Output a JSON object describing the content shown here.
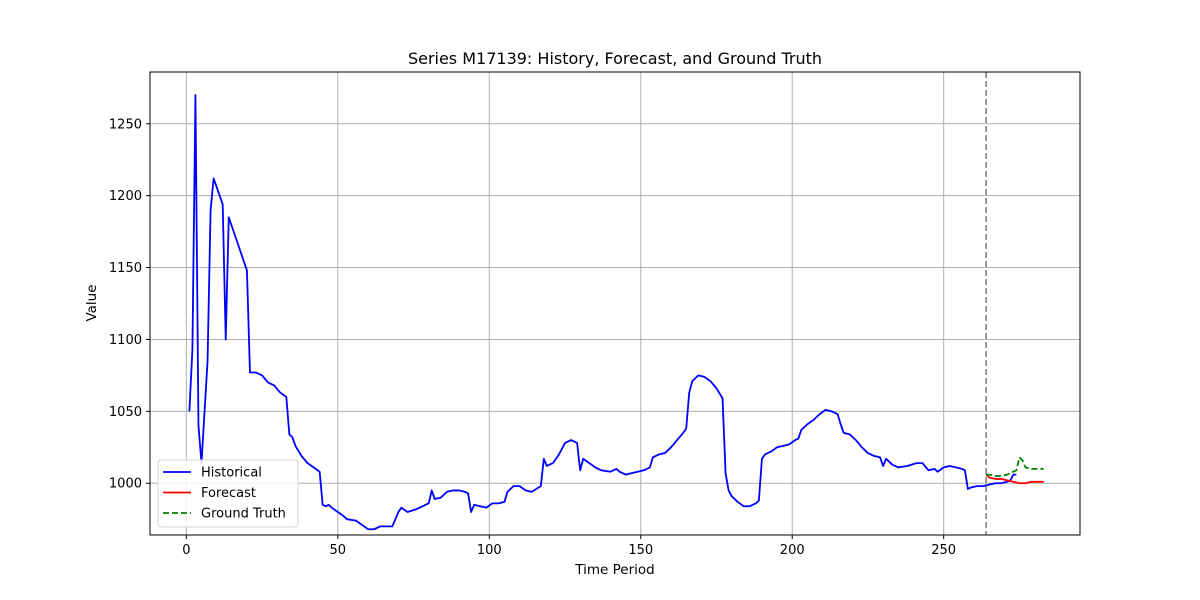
{
  "chart_data": {
    "type": "line",
    "title": "Series M17139: History, Forecast, and Ground Truth",
    "xlabel": "Time Period",
    "ylabel": "Value",
    "xlim": [
      -12,
      295
    ],
    "ylim": [
      964,
      1286
    ],
    "x_ticks": [
      0,
      50,
      100,
      150,
      200,
      250
    ],
    "y_ticks": [
      1000,
      1050,
      1100,
      1150,
      1200,
      1250
    ],
    "grid": true,
    "legend_position": "lower-left",
    "forecast_start": 264,
    "series": [
      {
        "name": "Historical",
        "color": "#0000ff",
        "style": "solid",
        "points": [
          [
            1,
            1050
          ],
          [
            2,
            1093
          ],
          [
            3,
            1270
          ],
          [
            4,
            1040
          ],
          [
            5,
            1014
          ],
          [
            7,
            1085
          ],
          [
            8,
            1190
          ],
          [
            9,
            1212
          ],
          [
            12,
            1194
          ],
          [
            13,
            1100
          ],
          [
            14,
            1185
          ],
          [
            20,
            1148
          ],
          [
            21,
            1077
          ],
          [
            23,
            1077
          ],
          [
            25,
            1075
          ],
          [
            27,
            1070
          ],
          [
            29,
            1068
          ],
          [
            31,
            1063
          ],
          [
            33,
            1060
          ],
          [
            34,
            1034
          ],
          [
            35,
            1032
          ],
          [
            36,
            1026
          ],
          [
            38,
            1019
          ],
          [
            40,
            1014
          ],
          [
            42,
            1011
          ],
          [
            44,
            1008
          ],
          [
            45,
            985
          ],
          [
            46,
            984
          ],
          [
            47,
            985
          ],
          [
            48,
            983
          ],
          [
            50,
            980
          ],
          [
            52,
            977
          ],
          [
            53,
            975
          ],
          [
            56,
            974
          ],
          [
            58,
            971
          ],
          [
            60,
            968
          ],
          [
            62,
            968
          ],
          [
            64,
            970
          ],
          [
            66,
            970
          ],
          [
            68,
            970
          ],
          [
            70,
            980
          ],
          [
            71,
            983
          ],
          [
            73,
            980
          ],
          [
            76,
            982
          ],
          [
            78,
            984
          ],
          [
            80,
            986
          ],
          [
            81,
            995
          ],
          [
            82,
            989
          ],
          [
            84,
            990
          ],
          [
            86,
            994
          ],
          [
            88,
            995
          ],
          [
            90,
            995
          ],
          [
            92,
            994
          ],
          [
            93,
            993
          ],
          [
            94,
            980
          ],
          [
            95,
            985
          ],
          [
            97,
            984
          ],
          [
            99,
            983
          ],
          [
            101,
            986
          ],
          [
            103,
            986
          ],
          [
            105,
            987
          ],
          [
            106,
            994
          ],
          [
            108,
            998
          ],
          [
            110,
            998
          ],
          [
            112,
            995
          ],
          [
            114,
            994
          ],
          [
            117,
            998
          ],
          [
            118,
            1017
          ],
          [
            119,
            1012
          ],
          [
            121,
            1014
          ],
          [
            123,
            1020
          ],
          [
            125,
            1028
          ],
          [
            127,
            1030
          ],
          [
            129,
            1028
          ],
          [
            130,
            1009
          ],
          [
            131,
            1017
          ],
          [
            133,
            1014
          ],
          [
            135,
            1011
          ],
          [
            137,
            1009
          ],
          [
            140,
            1008
          ],
          [
            142,
            1010
          ],
          [
            143,
            1008
          ],
          [
            145,
            1006
          ],
          [
            147,
            1007
          ],
          [
            149,
            1008
          ],
          [
            151,
            1009
          ],
          [
            153,
            1011
          ],
          [
            154,
            1018
          ],
          [
            156,
            1020
          ],
          [
            158,
            1021
          ],
          [
            160,
            1025
          ],
          [
            162,
            1030
          ],
          [
            164,
            1035
          ],
          [
            165,
            1038
          ],
          [
            166,
            1063
          ],
          [
            167,
            1071
          ],
          [
            169,
            1075
          ],
          [
            171,
            1074
          ],
          [
            173,
            1071
          ],
          [
            175,
            1066
          ],
          [
            177,
            1059
          ],
          [
            178,
            1007
          ],
          [
            179,
            995
          ],
          [
            180,
            991
          ],
          [
            182,
            987
          ],
          [
            184,
            984
          ],
          [
            186,
            984
          ],
          [
            188,
            986
          ],
          [
            189,
            988
          ],
          [
            190,
            1017
          ],
          [
            191,
            1020
          ],
          [
            193,
            1022
          ],
          [
            195,
            1025
          ],
          [
            197,
            1026
          ],
          [
            199,
            1027
          ],
          [
            201,
            1030
          ],
          [
            202,
            1031
          ],
          [
            203,
            1037
          ],
          [
            205,
            1041
          ],
          [
            207,
            1044
          ],
          [
            209,
            1048
          ],
          [
            211,
            1051
          ],
          [
            213,
            1050
          ],
          [
            215,
            1048
          ],
          [
            216,
            1041
          ],
          [
            217,
            1035
          ],
          [
            219,
            1034
          ],
          [
            221,
            1030
          ],
          [
            223,
            1025
          ],
          [
            225,
            1021
          ],
          [
            227,
            1019
          ],
          [
            229,
            1018
          ],
          [
            230,
            1012
          ],
          [
            231,
            1017
          ],
          [
            233,
            1013
          ],
          [
            235,
            1011
          ],
          [
            238,
            1012
          ],
          [
            241,
            1014
          ],
          [
            243,
            1014
          ],
          [
            245,
            1009
          ],
          [
            247,
            1010
          ],
          [
            248,
            1008
          ],
          [
            250,
            1011
          ],
          [
            252,
            1012
          ],
          [
            254,
            1011
          ],
          [
            256,
            1010
          ],
          [
            257,
            1009
          ],
          [
            258,
            996
          ],
          [
            259,
            997
          ],
          [
            261,
            998
          ],
          [
            263,
            998
          ],
          [
            265,
            999
          ],
          [
            267,
            1000
          ],
          [
            269,
            1000
          ],
          [
            271,
            1001
          ],
          [
            272,
            1002
          ],
          [
            273,
            1006
          ],
          [
            274,
            1006
          ]
        ]
      },
      {
        "name": "Forecast",
        "color": "#ff0000",
        "style": "solid",
        "points": [
          [
            264,
            1006
          ],
          [
            265,
            1004
          ],
          [
            267,
            1003
          ],
          [
            269,
            1003
          ],
          [
            271,
            1002
          ],
          [
            273,
            1001
          ],
          [
            275,
            1000
          ],
          [
            277,
            1000
          ],
          [
            279,
            1001
          ],
          [
            281,
            1001
          ],
          [
            283,
            1001
          ]
        ]
      },
      {
        "name": "Ground Truth",
        "color": "#008000",
        "style": "dashed",
        "points": [
          [
            264,
            1006
          ],
          [
            265,
            1006
          ],
          [
            267,
            1005
          ],
          [
            269,
            1005
          ],
          [
            271,
            1006
          ],
          [
            272,
            1007
          ],
          [
            273,
            1008
          ],
          [
            274,
            1009
          ],
          [
            275,
            1018
          ],
          [
            276,
            1016
          ],
          [
            277,
            1011
          ],
          [
            279,
            1010
          ],
          [
            281,
            1010
          ],
          [
            283,
            1010
          ]
        ]
      }
    ]
  }
}
